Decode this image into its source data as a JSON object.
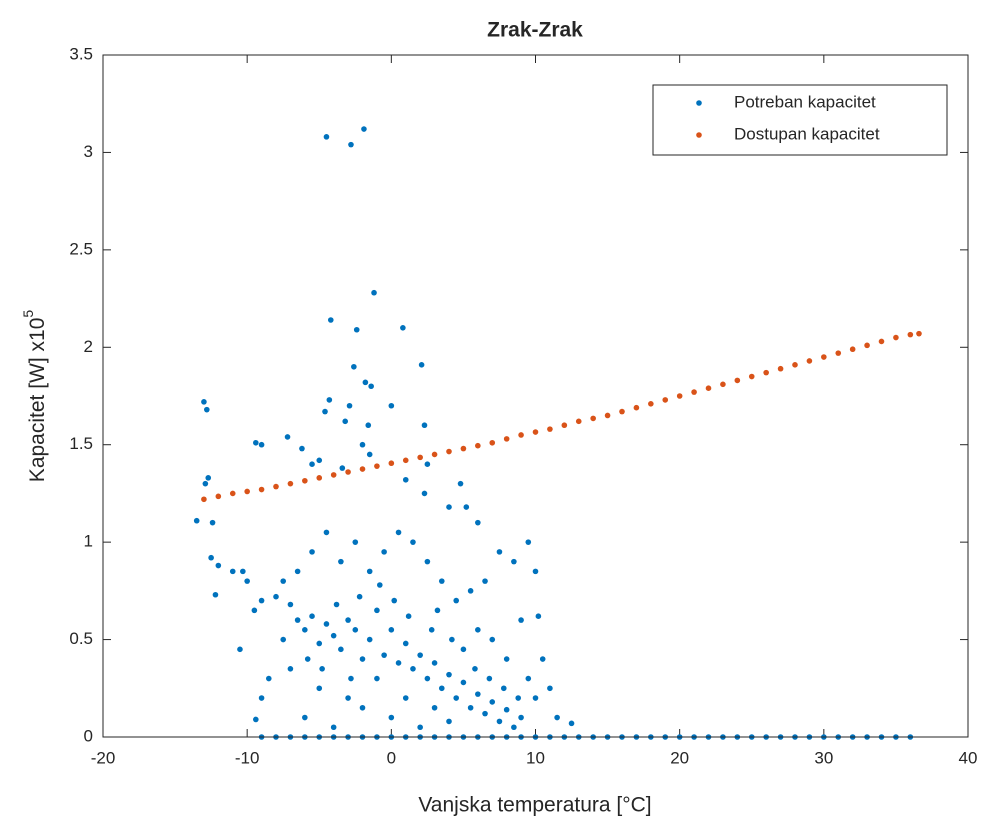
{
  "chart_data": {
    "type": "scatter",
    "title": "Zrak-Zrak",
    "xlabel": "Vanjska temperatura [°C]",
    "ylabel": "Kapacitet [W] x10",
    "ylabel_exponent": "5",
    "xlim": [
      -20,
      40
    ],
    "xticks": [
      -20,
      -10,
      0,
      10,
      20,
      30,
      40
    ],
    "ylim": [
      0,
      3.5
    ],
    "yticks": [
      0,
      0.5,
      1,
      1.5,
      2,
      2.5,
      3,
      3.5
    ],
    "grid": false,
    "legend": "northeast",
    "series": [
      {
        "name": "Potreban kapacitet",
        "color": "#0072bd",
        "x": [
          -4.5,
          -2.8,
          -1.9,
          -1.2,
          -4.2,
          -2.4,
          0.8,
          2.1,
          -2.6,
          -1.8,
          -1.4,
          -4.3,
          -4.6,
          -2.9,
          -3.2,
          -1.6,
          0,
          2.3,
          -13,
          -12.8,
          -12.7,
          -12.9,
          -9.4,
          -9,
          -7.2,
          -6.2,
          -5.5,
          -5,
          -3.4,
          -2,
          -1.5,
          1,
          2.5,
          2.3,
          4,
          5.2,
          6,
          4.8,
          -13.5,
          -12.4,
          -12.5,
          -12,
          -12.2,
          -11,
          -10.3,
          -10,
          -10.5,
          -9,
          -9.5,
          -8,
          -7,
          -8.5,
          -9,
          -9.4,
          -7.5,
          -6.5,
          -6,
          -5.5,
          -5,
          -4.5,
          -4,
          -3.5,
          -3,
          -2.5,
          -2,
          -1.5,
          -1,
          -0.5,
          0,
          0.5,
          1,
          1.5,
          2,
          2.5,
          3,
          3.5,
          4,
          4.5,
          5,
          5.5,
          6,
          6.5,
          7,
          7.5,
          8,
          8.5,
          9,
          9.5,
          10,
          10.5,
          11,
          11.5,
          12.5,
          10.2,
          10,
          9.5,
          8.5,
          7.5,
          6.5,
          5.5,
          4.5,
          3.5,
          2.5,
          1.5,
          0.5,
          -0.5,
          -1.5,
          -2.5,
          -3.5,
          -4.5,
          -5.5,
          -6.5,
          -7.5,
          -3,
          -5,
          -6,
          -7,
          -4,
          -2,
          0,
          1,
          2,
          3,
          4,
          5,
          6,
          7,
          8,
          9,
          -1,
          0.2,
          -0.8,
          1.2,
          2.8,
          -2.2,
          -3.8,
          3.2,
          4.2,
          5.8,
          6.8,
          7.8,
          8.8,
          -5.8,
          -4.8,
          -2.8,
          -9,
          -8,
          -7,
          -6,
          -5,
          -4,
          -3,
          -2,
          -1,
          0,
          1,
          2,
          3,
          4,
          5,
          6,
          7,
          8,
          9,
          10,
          11,
          12,
          13,
          14,
          15,
          16,
          17,
          18,
          19,
          20,
          21,
          22,
          23,
          24,
          25,
          26,
          27,
          28,
          29,
          30,
          31,
          32,
          33,
          34,
          35,
          36
        ],
        "values": [
          3.08,
          3.04,
          3.12,
          2.28,
          2.14,
          2.09,
          2.1,
          1.91,
          1.9,
          1.82,
          1.8,
          1.73,
          1.67,
          1.7,
          1.62,
          1.6,
          1.7,
          1.6,
          1.72,
          1.68,
          1.33,
          1.3,
          1.51,
          1.5,
          1.54,
          1.48,
          1.4,
          1.42,
          1.38,
          1.5,
          1.45,
          1.32,
          1.4,
          1.25,
          1.18,
          1.18,
          1.1,
          1.3,
          1.11,
          1.1,
          0.92,
          0.88,
          0.73,
          0.85,
          0.85,
          0.8,
          0.45,
          0.7,
          0.65,
          0.72,
          0.68,
          0.3,
          0.2,
          0.09,
          0.5,
          0.6,
          0.55,
          0.62,
          0.48,
          0.58,
          0.52,
          0.45,
          0.6,
          0.55,
          0.4,
          0.5,
          0.65,
          0.42,
          0.55,
          0.38,
          0.48,
          0.35,
          0.42,
          0.3,
          0.38,
          0.25,
          0.32,
          0.2,
          0.28,
          0.15,
          0.22,
          0.12,
          0.18,
          0.08,
          0.14,
          0.05,
          0.1,
          0.3,
          0.2,
          0.4,
          0.25,
          0.1,
          0.07,
          0.62,
          0.85,
          1.0,
          0.9,
          0.95,
          0.8,
          0.75,
          0.7,
          0.8,
          0.9,
          1.0,
          1.05,
          0.95,
          0.85,
          1.0,
          0.9,
          1.05,
          0.95,
          0.85,
          0.8,
          0.2,
          0.25,
          0.1,
          0.35,
          0.05,
          0.15,
          0.1,
          0.2,
          0.05,
          0.15,
          0.08,
          0.45,
          0.55,
          0.5,
          0.4,
          0.6,
          0.3,
          0.7,
          0.78,
          0.62,
          0.55,
          0.72,
          0.68,
          0.65,
          0.5,
          0.35,
          0.3,
          0.25,
          0.2,
          0.4,
          0.35,
          0.3,
          0,
          0,
          0,
          0,
          0,
          0,
          0,
          0,
          0,
          0,
          0,
          0,
          0,
          0,
          0,
          0,
          0,
          0,
          0,
          0,
          0,
          0,
          0,
          0,
          0,
          0,
          0,
          0,
          0,
          0,
          0,
          0,
          0,
          0,
          0,
          0,
          0,
          0,
          0,
          0,
          0,
          0,
          0,
          0,
          0,
          0
        ]
      },
      {
        "name": "Dostupan kapacitet",
        "color": "#d95319",
        "x": [
          -13,
          -12,
          -11,
          -10,
          -9,
          -8,
          -7,
          -6,
          -5,
          -4,
          -3,
          -2,
          -1,
          0,
          1,
          2,
          3,
          4,
          5,
          6,
          7,
          8,
          9,
          10,
          11,
          12,
          13,
          14,
          15,
          16,
          17,
          18,
          19,
          20,
          21,
          22,
          23,
          24,
          25,
          26,
          27,
          28,
          29,
          30,
          31,
          32,
          33,
          34,
          35,
          36,
          36.6
        ],
        "values": [
          1.22,
          1.235,
          1.25,
          1.26,
          1.27,
          1.285,
          1.3,
          1.315,
          1.33,
          1.345,
          1.36,
          1.375,
          1.39,
          1.405,
          1.42,
          1.435,
          1.45,
          1.465,
          1.48,
          1.495,
          1.51,
          1.53,
          1.55,
          1.565,
          1.58,
          1.6,
          1.62,
          1.635,
          1.65,
          1.67,
          1.69,
          1.71,
          1.73,
          1.75,
          1.77,
          1.79,
          1.81,
          1.83,
          1.85,
          1.87,
          1.89,
          1.91,
          1.93,
          1.95,
          1.97,
          1.99,
          2.01,
          2.03,
          2.05,
          2.065,
          2.07
        ]
      }
    ]
  }
}
